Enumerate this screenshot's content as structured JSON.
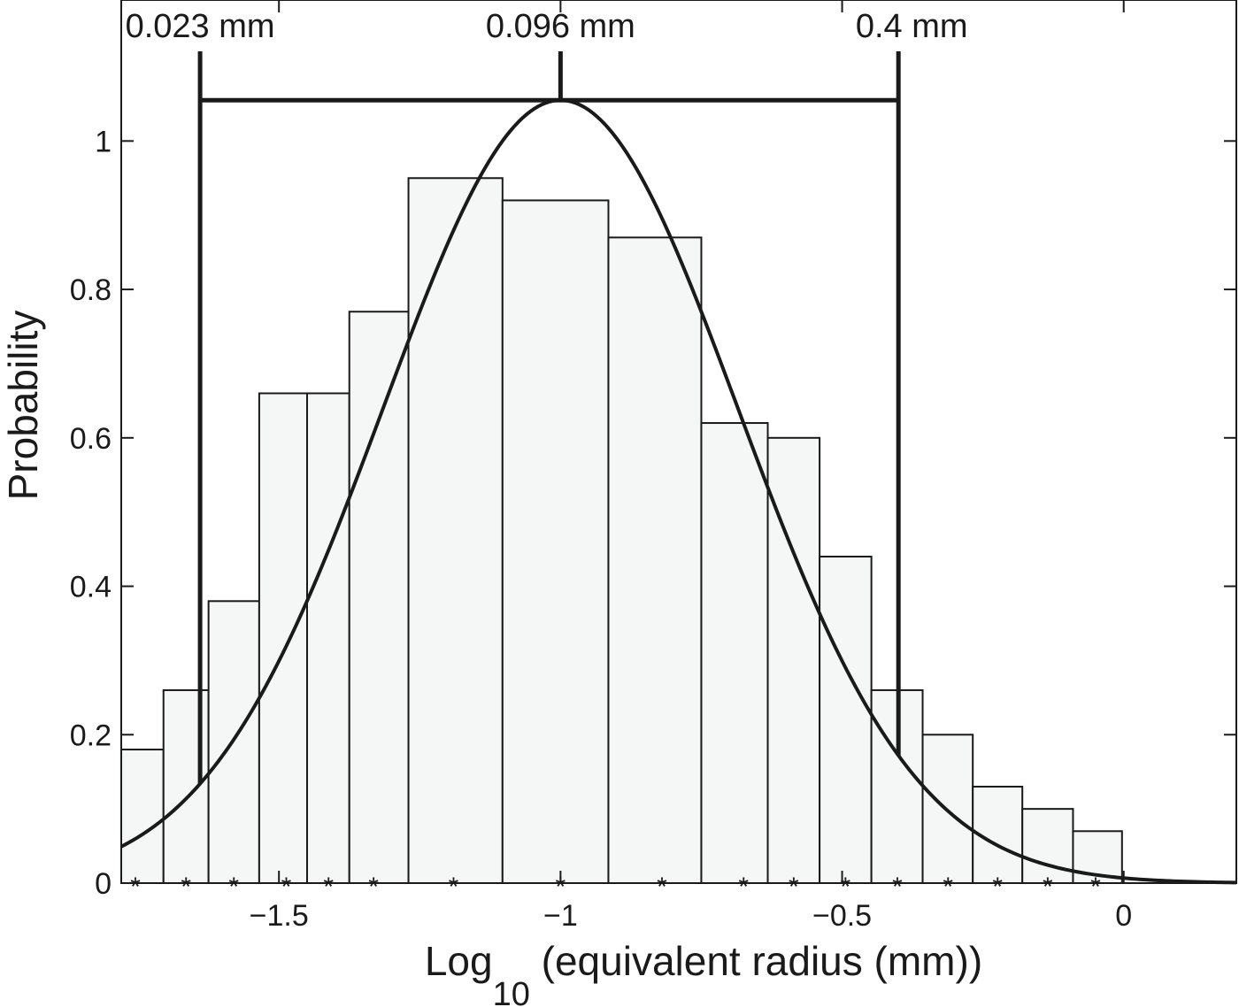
{
  "chart_data": {
    "type": "bar",
    "xlabel_main": "Log",
    "xlabel_sub": "10",
    "xlabel_rest": " (equivalent radius (mm))",
    "ylabel": "Probability",
    "xlim": [
      -1.78,
      0.2
    ],
    "ylim": [
      0,
      1.19
    ],
    "xticks": [
      -1.5,
      -1,
      -0.5,
      0
    ],
    "xtick_labels": [
      "−1.5",
      "−1",
      "−0.5",
      "0"
    ],
    "yticks": [
      0,
      0.2,
      0.4,
      0.6,
      0.8,
      1
    ],
    "ytick_labels": [
      "0",
      "0.2",
      "0.4",
      "0.6",
      "0.8",
      "1"
    ],
    "bins": [
      {
        "x0": -1.78,
        "x1": -1.705,
        "value": 0.18
      },
      {
        "x0": -1.705,
        "x1": -1.625,
        "value": 0.26
      },
      {
        "x0": -1.625,
        "x1": -1.535,
        "value": 0.38
      },
      {
        "x0": -1.535,
        "x1": -1.45,
        "value": 0.66
      },
      {
        "x0": -1.45,
        "x1": -1.375,
        "value": 0.66
      },
      {
        "x0": -1.375,
        "x1": -1.27,
        "value": 0.77
      },
      {
        "x0": -1.27,
        "x1": -1.103,
        "value": 0.95
      },
      {
        "x0": -1.103,
        "x1": -0.915,
        "value": 0.92
      },
      {
        "x0": -0.915,
        "x1": -0.75,
        "value": 0.87
      },
      {
        "x0": -0.75,
        "x1": -0.632,
        "value": 0.62
      },
      {
        "x0": -0.632,
        "x1": -0.54,
        "value": 0.6
      },
      {
        "x0": -0.54,
        "x1": -0.448,
        "value": 0.44
      },
      {
        "x0": -0.448,
        "x1": -0.357,
        "value": 0.26
      },
      {
        "x0": -0.357,
        "x1": -0.268,
        "value": 0.2
      },
      {
        "x0": -0.268,
        "x1": -0.18,
        "value": 0.13
      },
      {
        "x0": -0.18,
        "x1": -0.09,
        "value": 0.1
      },
      {
        "x0": -0.09,
        "x1": -0.003,
        "value": 0.07
      }
    ],
    "markers_x": [
      -1.755,
      -1.665,
      -1.58,
      -1.487,
      -1.412,
      -1.332,
      -1.19,
      -1.0,
      -0.82,
      -0.675,
      -0.586,
      -0.494,
      -0.402,
      -0.312,
      -0.224,
      -0.135,
      -0.05
    ],
    "fit_curve": {
      "type": "gaussian",
      "mean": -1.0,
      "sd": 0.315,
      "peak": 1.055
    },
    "annotations": [
      {
        "label": "0.023 mm",
        "x": -1.64
      },
      {
        "label": "0.096 mm",
        "x": -1.0
      },
      {
        "label": "0.4 mm",
        "x": -0.4
      }
    ],
    "bracket_y": 1.055,
    "grid": false
  }
}
